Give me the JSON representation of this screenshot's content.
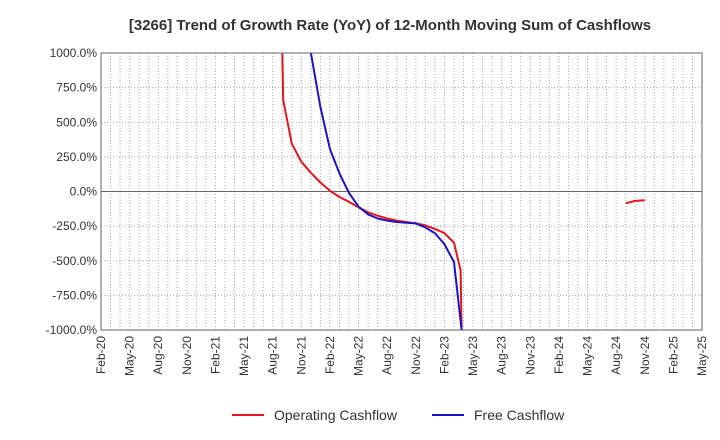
{
  "chart_data": {
    "type": "line",
    "title": "[3266]  Trend of Growth Rate (YoY) of 12-Month Moving Sum of Cashflows",
    "xlabel": "",
    "ylabel": "",
    "ylim": [
      -1000,
      1000
    ],
    "yticks": [
      1000,
      750,
      500,
      250,
      0,
      -250,
      -500,
      -750,
      -1000
    ],
    "ytick_labels": [
      "1000.0%",
      "750.0%",
      "500.0%",
      "250.0%",
      "0.0%",
      "-250.0%",
      "-500.0%",
      "-750.0%",
      "-1000.0%"
    ],
    "x_range_months": [
      0,
      63
    ],
    "xticks": [
      {
        "m": 0,
        "label": "Feb-20"
      },
      {
        "m": 3,
        "label": "May-20"
      },
      {
        "m": 6,
        "label": "Aug-20"
      },
      {
        "m": 9,
        "label": "Nov-20"
      },
      {
        "m": 12,
        "label": "Feb-21"
      },
      {
        "m": 15,
        "label": "May-21"
      },
      {
        "m": 18,
        "label": "Aug-21"
      },
      {
        "m": 21,
        "label": "Nov-21"
      },
      {
        "m": 24,
        "label": "Feb-22"
      },
      {
        "m": 27,
        "label": "May-22"
      },
      {
        "m": 30,
        "label": "Aug-22"
      },
      {
        "m": 33,
        "label": "Nov-22"
      },
      {
        "m": 36,
        "label": "Feb-23"
      },
      {
        "m": 39,
        "label": "May-23"
      },
      {
        "m": 42,
        "label": "Aug-23"
      },
      {
        "m": 45,
        "label": "Nov-23"
      },
      {
        "m": 48,
        "label": "Feb-24"
      },
      {
        "m": 51,
        "label": "May-24"
      },
      {
        "m": 54,
        "label": "Aug-24"
      },
      {
        "m": 57,
        "label": "Nov-24"
      },
      {
        "m": 60,
        "label": "Feb-25"
      },
      {
        "m": 63,
        "label": "May-25"
      }
    ],
    "grid": true,
    "legend_position": "bottom-center",
    "series": [
      {
        "name": "Operating Cashflow",
        "color": "#e8141b",
        "segments": [
          [
            [
              19,
              1000
            ],
            [
              19.1,
              660
            ],
            [
              20,
              345
            ],
            [
              21,
              215
            ],
            [
              22,
              135
            ],
            [
              23,
              65
            ],
            [
              24,
              5
            ],
            [
              25,
              -40
            ],
            [
              26,
              -75
            ],
            [
              27,
              -115
            ],
            [
              28,
              -150
            ],
            [
              29,
              -175
            ],
            [
              30,
              -195
            ],
            [
              31,
              -210
            ],
            [
              32,
              -220
            ],
            [
              33,
              -230
            ],
            [
              34,
              -245
            ],
            [
              35,
              -270
            ],
            [
              36,
              -300
            ],
            [
              37,
              -370
            ],
            [
              37.7,
              -570
            ],
            [
              37.8,
              -1000
            ]
          ],
          [
            [
              55,
              -85
            ],
            [
              56,
              -68
            ],
            [
              57,
              -63
            ]
          ]
        ]
      },
      {
        "name": "Free Cashflow",
        "color": "#1a14c8",
        "segments": [
          [
            [
              22,
              1000
            ],
            [
              23,
              610
            ],
            [
              24,
              305
            ],
            [
              25,
              130
            ],
            [
              26,
              -10
            ],
            [
              27,
              -110
            ],
            [
              28,
              -165
            ],
            [
              29,
              -195
            ],
            [
              30,
              -210
            ],
            [
              31,
              -220
            ],
            [
              32,
              -225
            ],
            [
              33,
              -230
            ],
            [
              34,
              -260
            ],
            [
              35,
              -300
            ],
            [
              36,
              -380
            ],
            [
              37,
              -510
            ],
            [
              37.8,
              -1000
            ]
          ]
        ]
      }
    ]
  }
}
